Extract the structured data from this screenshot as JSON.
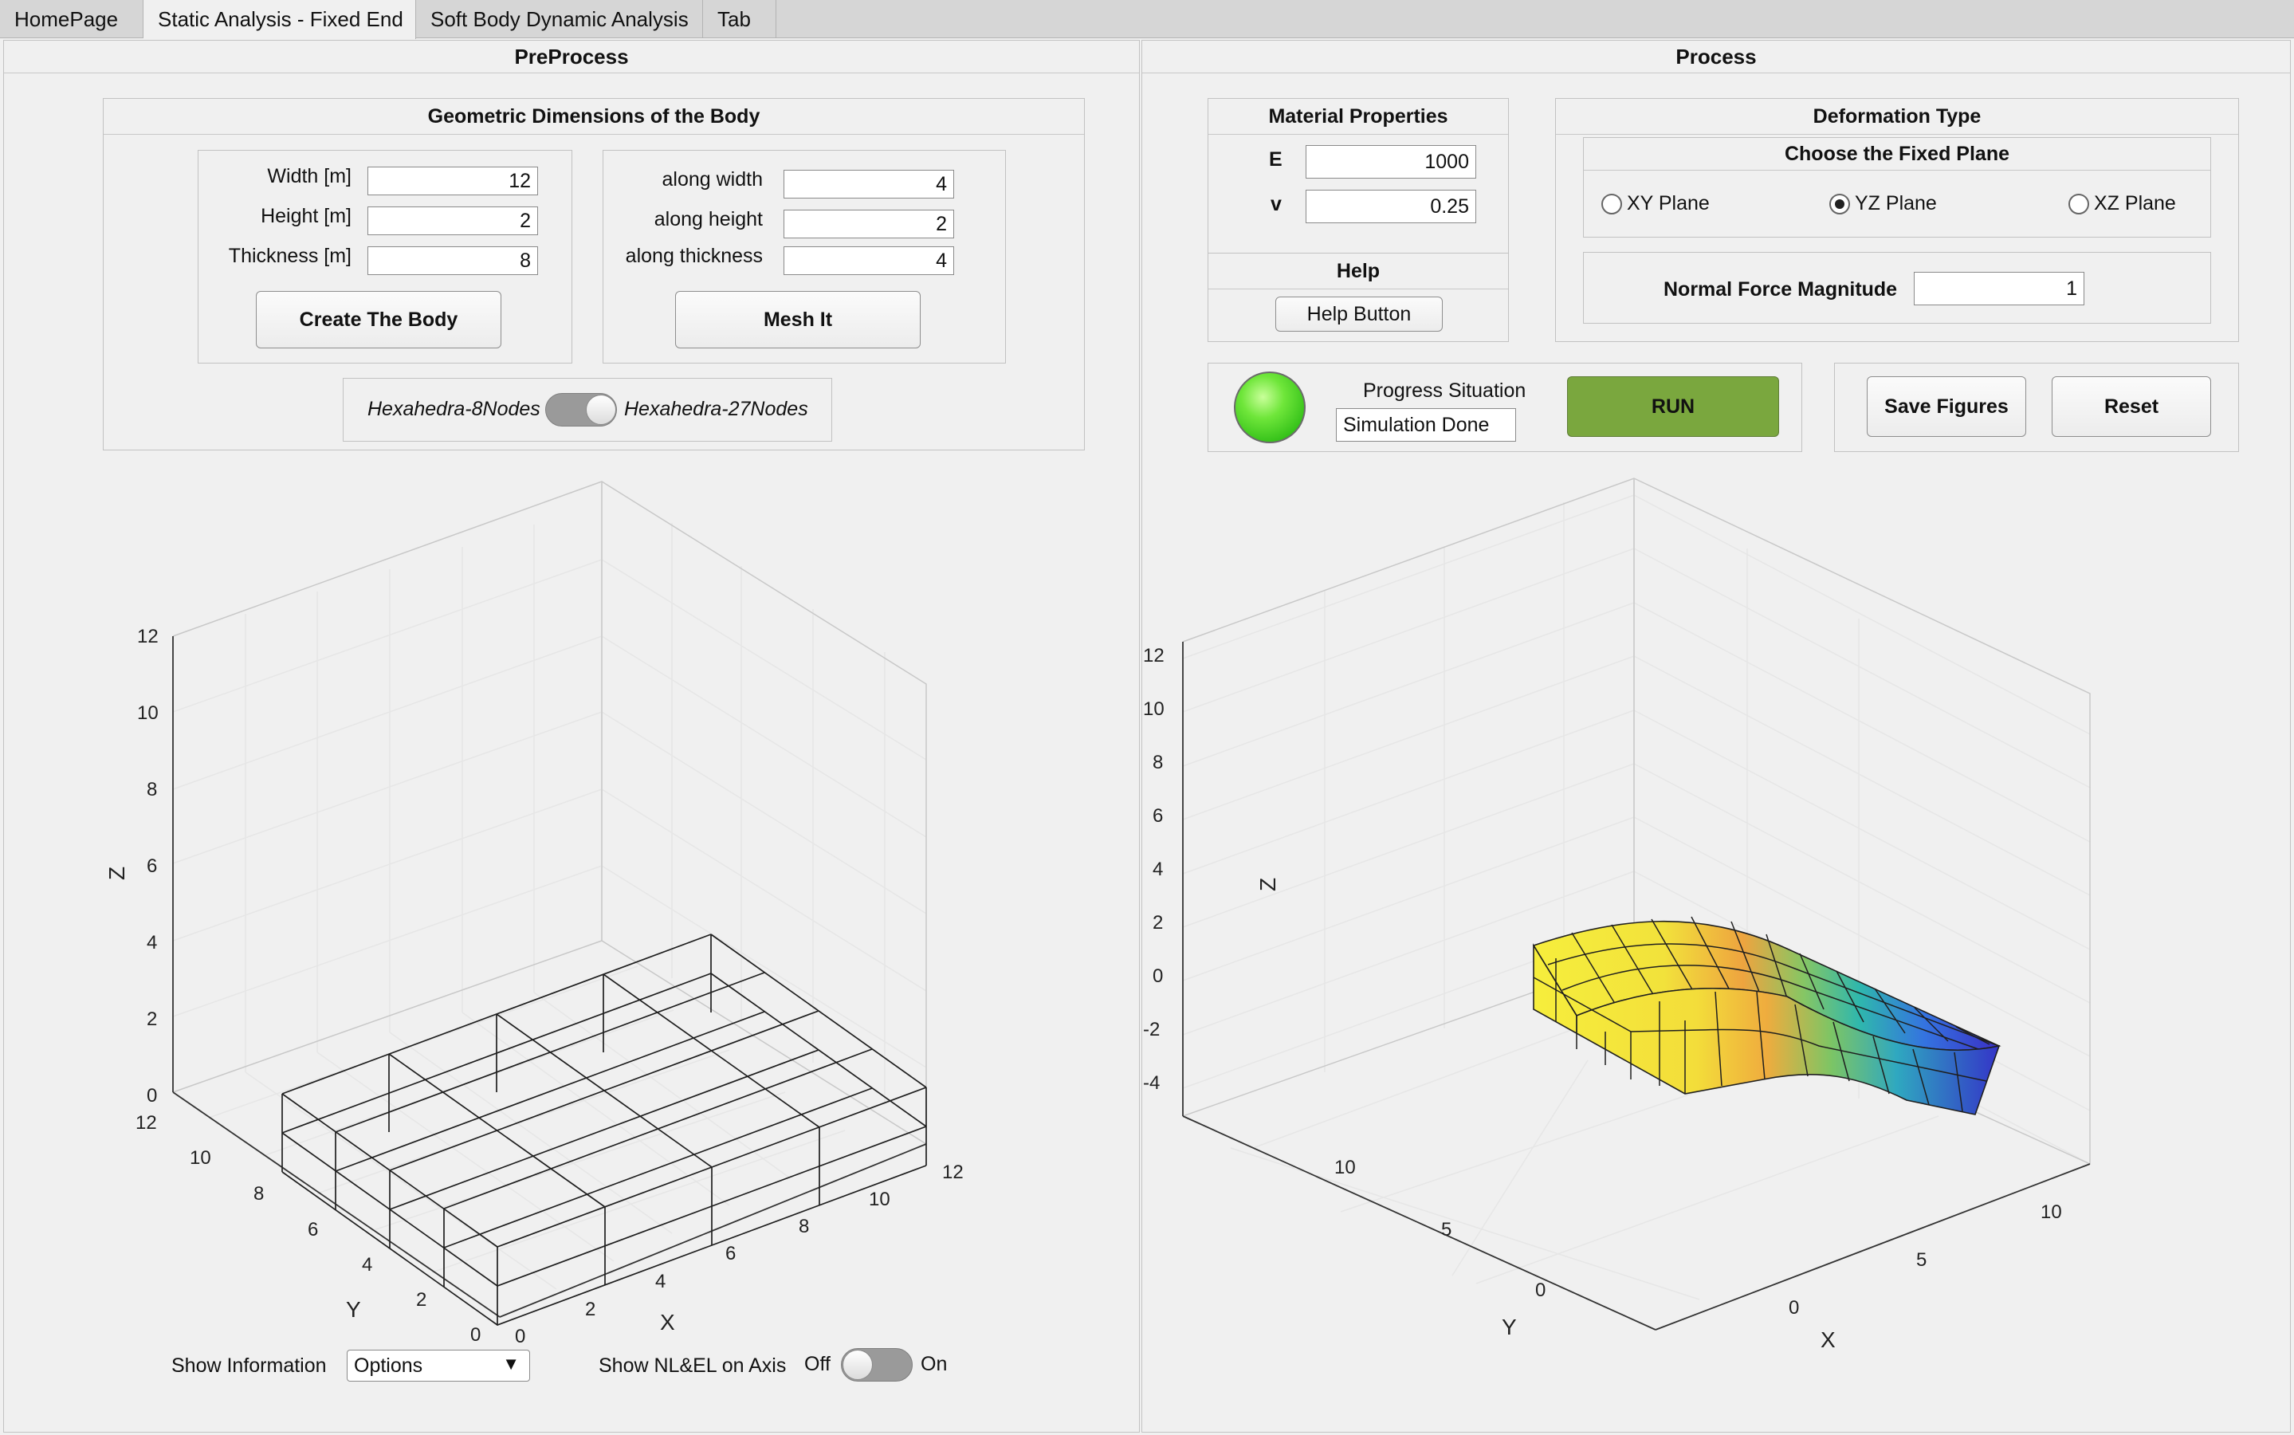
{
  "tabs": [
    {
      "label": "HomePage"
    },
    {
      "label": "Static Analysis - Fixed End"
    },
    {
      "label": "Soft Body Dynamic Analysis"
    },
    {
      "label": "Tab"
    }
  ],
  "preprocess": {
    "title": "PreProcess",
    "geometry": {
      "title": "Geometric Dimensions of the Body",
      "width_label": "Width [m]",
      "width_value": "12",
      "height_label": "Height [m]",
      "height_value": "2",
      "thickness_label": "Thickness [m]",
      "thickness_value": "8",
      "create_button": "Create The Body"
    },
    "mesh": {
      "along_width_label": "along width",
      "along_width_value": "4",
      "along_height_label": "along height",
      "along_height_value": "2",
      "along_thickness_label": "along thickness",
      "along_thickness_value": "4",
      "mesh_button": "Mesh It"
    },
    "element_switch": {
      "left_label": "Hexahedra-8Nodes",
      "right_label": "Hexahedra-27Nodes"
    },
    "show_info_label": "Show Information",
    "options_value": "Options",
    "show_nl_label": "Show NL&EL on Axis",
    "nl_off": "Off",
    "nl_on": "On"
  },
  "process": {
    "title": "Process",
    "material": {
      "title": "Material Properties",
      "e_label": "E",
      "e_value": "1000",
      "v_label": "v",
      "v_value": "0.25"
    },
    "help": {
      "title": "Help",
      "button": "Help Button"
    },
    "deformation": {
      "title": "Deformation Type",
      "fixed_plane_title": "Choose the Fixed Plane",
      "options": [
        "XY Plane",
        "YZ Plane",
        "XZ Plane"
      ],
      "selected": "YZ Plane",
      "force_label": "Normal Force Magnitude",
      "force_value": "1"
    },
    "progress_label": "Progress Situation",
    "progress_value": "Simulation Done",
    "lamp_color": "#3fd21f",
    "run_button": "RUN",
    "run_color": "#7aa73e",
    "save_button": "Save Figures",
    "reset_button": "Reset"
  },
  "chart_data": [
    {
      "type": "3d-mesh",
      "xlabel": "X",
      "ylabel": "Y",
      "zlabel": "Z",
      "x_ticks": [
        0,
        2,
        4,
        6,
        8,
        10,
        12
      ],
      "y_ticks": [
        0,
        2,
        4,
        6,
        8,
        10,
        12
      ],
      "z_ticks": [
        0,
        2,
        4,
        6,
        8,
        10,
        12
      ],
      "xlim": [
        0,
        12
      ],
      "ylim": [
        0,
        12
      ],
      "zlim": [
        0,
        12
      ],
      "body": {
        "width": 12,
        "thickness": 8,
        "height": 2
      },
      "divisions": {
        "x": 4,
        "y": 4,
        "z": 2
      },
      "grid": true
    },
    {
      "type": "3d-deformed-surface",
      "xlabel": "X",
      "ylabel": "Y",
      "zlabel": "Z",
      "x_ticks": [
        0,
        5,
        10
      ],
      "y_ticks": [
        0,
        5,
        10
      ],
      "z_ticks": [
        -4,
        -2,
        0,
        2,
        4,
        6,
        8,
        10,
        12
      ],
      "zlim": [
        -4,
        12
      ],
      "colormap": [
        "#f4ec3a",
        "#f5c340",
        "#e5a43e",
        "#79c463",
        "#34b3b0",
        "#2f7fe0",
        "#3d35c9"
      ],
      "grid": true
    }
  ]
}
